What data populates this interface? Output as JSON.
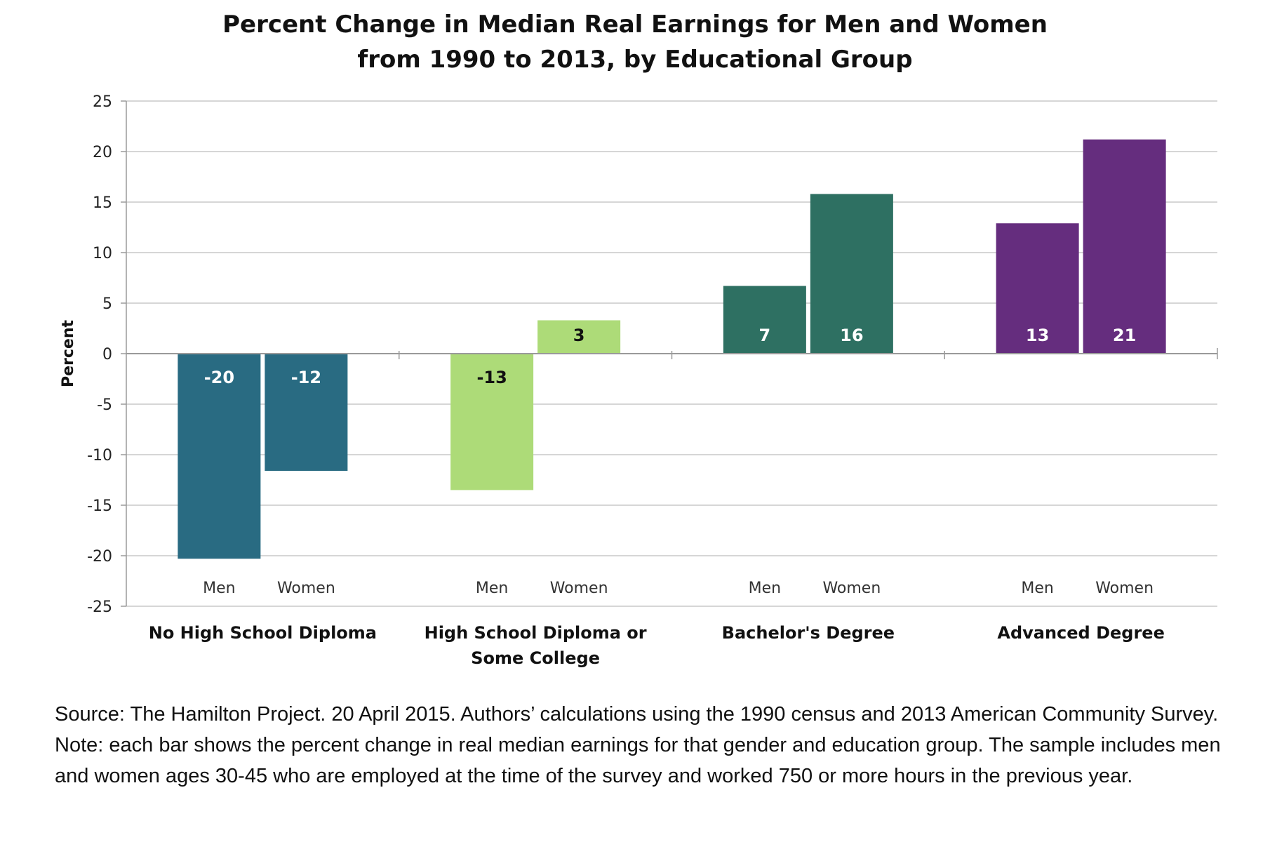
{
  "chart_data": {
    "type": "bar",
    "title": [
      "Percent Change in Median Real Earnings for Men and Women",
      "from 1990 to 2013, by Educational Group"
    ],
    "ylabel": "Percent",
    "ylim": [
      -25,
      25
    ],
    "yticks": [
      25,
      20,
      15,
      10,
      5,
      0,
      -5,
      -10,
      -15,
      -20,
      -25
    ],
    "grid": true,
    "groups": [
      {
        "label": [
          "No High School Diploma"
        ],
        "color": "#296b82",
        "label_color": "#ffffff",
        "bars": [
          {
            "series": "Men",
            "value": -20.3,
            "label": "-20"
          },
          {
            "series": "Women",
            "value": -11.6,
            "label": "-12"
          }
        ]
      },
      {
        "label": [
          "High School Diploma or",
          "Some College"
        ],
        "color": "#addb78",
        "label_color": "#111111",
        "bars": [
          {
            "series": "Men",
            "value": -13.5,
            "label": "-13"
          },
          {
            "series": "Women",
            "value": 3.3,
            "label": "3"
          }
        ]
      },
      {
        "label": [
          "Bachelor's Degree"
        ],
        "color": "#2e7062",
        "label_color": "#ffffff",
        "bars": [
          {
            "series": "Men",
            "value": 6.7,
            "label": "7"
          },
          {
            "series": "Women",
            "value": 15.8,
            "label": "16"
          }
        ]
      },
      {
        "label": [
          "Advanced Degree"
        ],
        "color": "#652d7e",
        "label_color": "#ffffff",
        "bars": [
          {
            "series": "Men",
            "value": 12.9,
            "label": "13"
          },
          {
            "series": "Women",
            "value": 21.2,
            "label": "21"
          }
        ]
      }
    ]
  },
  "source_note": "Source: The Hamilton Project. 20 April 2015. Authors’ calculations using the 1990 census and 2013 American Community Survey. Note: each bar shows the percent change in real median earnings for that gender and education group. The sample includes men and women ages 30-45 who are employed at the time of the survey and worked 750 or more hours in the previous year."
}
